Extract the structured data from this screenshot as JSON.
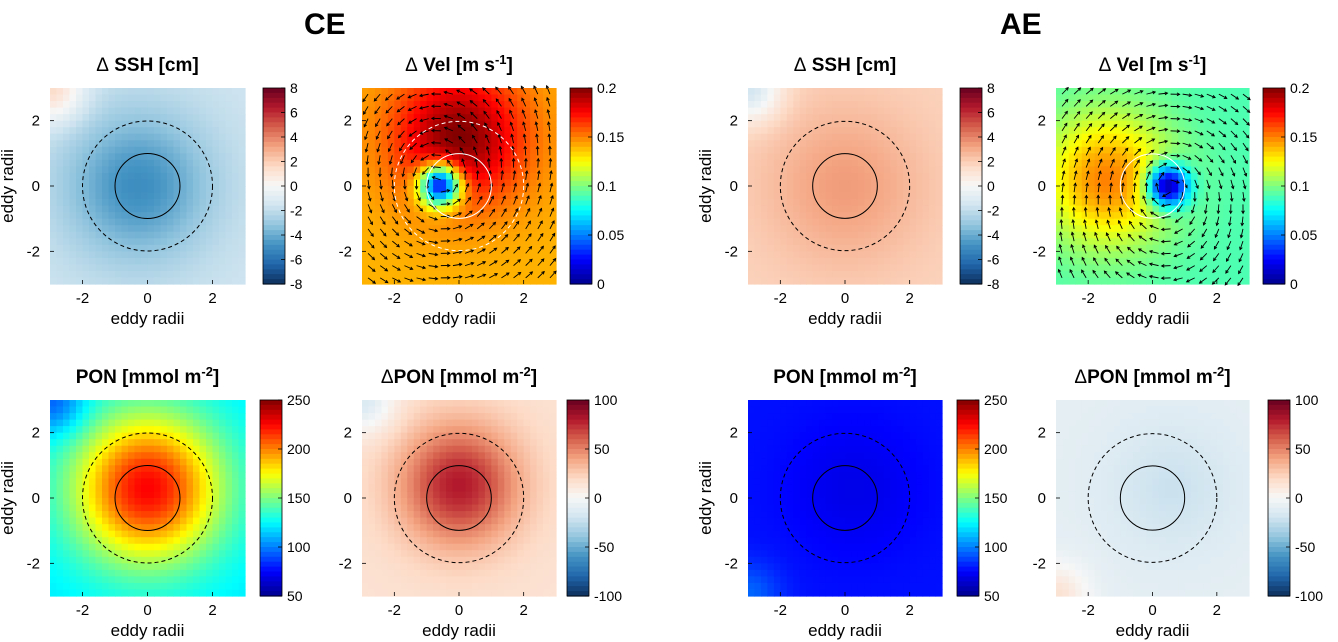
{
  "groups": [
    {
      "id": "ce",
      "title": "CE"
    },
    {
      "id": "ae",
      "title": "AE"
    }
  ],
  "colormaps": {
    "diverging": [
      "#0c2f5b",
      "#2166ac",
      "#4393c3",
      "#92c5de",
      "#d1e5f0",
      "#f7f7f7",
      "#fddbc7",
      "#f4a582",
      "#d6604d",
      "#b2182b",
      "#67001f"
    ],
    "jet": [
      "#00008f",
      "#0000ff",
      "#0080ff",
      "#00ffff",
      "#80ff80",
      "#ffff00",
      "#ff8000",
      "#ff0000",
      "#800000"
    ]
  },
  "chart_data": [
    {
      "id": "ce-ssh",
      "group": "CE",
      "type": "heatmap",
      "title_prefix": "Δ",
      "title_main": " SSH [cm]",
      "xlabel": "eddy radii",
      "ylabel": "eddy radii",
      "xlim": [
        -3,
        3
      ],
      "ylim": [
        -3,
        3
      ],
      "xticks": [
        -2,
        0,
        2
      ],
      "yticks": [
        -2,
        0,
        2
      ],
      "show_xlabel": true,
      "show_ylabel": true,
      "colormap": "diverging",
      "clim": [
        -8,
        8
      ],
      "colorbar_ticks": [
        "8",
        "6",
        "4",
        "2",
        "0",
        "-2",
        "-4",
        "-6",
        "-8"
      ],
      "colorbar_values": [
        8,
        6,
        4,
        2,
        0,
        -2,
        -4,
        -6,
        -8
      ],
      "field": {
        "background": -1.6,
        "peak": -5.0,
        "center": [
          -0.3,
          0.0
        ],
        "sigma": 1.6,
        "corner_value": 1.5,
        "corner": [
          -3,
          3
        ]
      },
      "circles": [
        {
          "r": 1,
          "style": "solid",
          "color": "black"
        },
        {
          "r": 2,
          "style": "dashed",
          "color": "black"
        }
      ],
      "arrows": false
    },
    {
      "id": "ce-vel",
      "group": "CE",
      "type": "heatmap",
      "title_prefix": "Δ",
      "title_main": " Vel [m s",
      "title_sup": "-1",
      "title_end": "]",
      "xlabel": "eddy radii",
      "ylabel": "",
      "xlim": [
        -3,
        3
      ],
      "ylim": [
        -3,
        3
      ],
      "xticks": [
        -2,
        0,
        2
      ],
      "yticks": [
        -2,
        0,
        2
      ],
      "show_xlabel": true,
      "show_ylabel": false,
      "colormap": "jet",
      "clim": [
        0,
        0.2
      ],
      "colorbar_ticks": [
        "0.2",
        "0.15",
        "0.1",
        "0.05",
        "0"
      ],
      "colorbar_values": [
        0.2,
        0.15,
        0.1,
        0.05,
        0
      ],
      "field": {
        "background": 0.14,
        "ring_peak": 0.2,
        "ring_center": [
          0.0,
          1.5
        ],
        "center_min": 0.03,
        "center": [
          -0.6,
          0.0
        ]
      },
      "circles": [
        {
          "r": 1,
          "style": "solid",
          "color": "white"
        },
        {
          "r": 2,
          "style": "dashed",
          "color": "white"
        }
      ],
      "arrows": true,
      "rotation": "counterclockwise"
    },
    {
      "id": "ae-ssh",
      "group": "AE",
      "type": "heatmap",
      "title_prefix": "Δ",
      "title_main": " SSH [cm]",
      "xlabel": "eddy radii",
      "ylabel": "eddy radii",
      "xlim": [
        -3,
        3
      ],
      "ylim": [
        -3,
        3
      ],
      "xticks": [
        -2,
        0,
        2
      ],
      "yticks": [
        -2,
        0,
        2
      ],
      "show_xlabel": true,
      "show_ylabel": true,
      "colormap": "diverging",
      "clim": [
        -8,
        8
      ],
      "colorbar_ticks": [
        "8",
        "6",
        "4",
        "2",
        "0",
        "-2",
        "-4",
        "-6",
        "-8"
      ],
      "colorbar_values": [
        8,
        6,
        4,
        2,
        0,
        -2,
        -4,
        -6,
        -8
      ],
      "field": {
        "background": 1.8,
        "peak": 3.4,
        "center": [
          0.0,
          0.0
        ],
        "sigma": 1.7,
        "corner_value": -1.5,
        "corner": [
          -3,
          3
        ]
      },
      "circles": [
        {
          "r": 1,
          "style": "solid",
          "color": "black"
        },
        {
          "r": 2,
          "style": "dashed",
          "color": "black"
        }
      ],
      "arrows": false
    },
    {
      "id": "ae-vel",
      "group": "AE",
      "type": "heatmap",
      "title_prefix": "Δ",
      "title_main": " Vel [m s",
      "title_sup": "-1",
      "title_end": "]",
      "xlabel": "eddy radii",
      "ylabel": "",
      "xlim": [
        -3,
        3
      ],
      "ylim": [
        -3,
        3
      ],
      "xticks": [
        -2,
        0,
        2
      ],
      "yticks": [
        -2,
        0,
        2
      ],
      "show_xlabel": true,
      "show_ylabel": false,
      "colormap": "jet",
      "clim": [
        0,
        0.2
      ],
      "colorbar_ticks": [
        "0.2",
        "0.15",
        "0.1",
        "0.05",
        "0"
      ],
      "colorbar_values": [
        0.2,
        0.15,
        0.1,
        0.05,
        0
      ],
      "field": {
        "background": 0.09,
        "ring_peak": 0.15,
        "ring_center": [
          -1.4,
          0.2
        ],
        "center_min": 0.01,
        "center": [
          0.5,
          0.0
        ]
      },
      "circles": [
        {
          "r": 1,
          "style": "solid",
          "color": "white"
        }
      ],
      "arrows": true,
      "rotation": "clockwise"
    },
    {
      "id": "ce-pon",
      "group": "CE",
      "type": "heatmap",
      "title_prefix": "",
      "title_main": "PON [mmol m",
      "title_sup": "-2",
      "title_end": "]",
      "xlabel": "eddy radii",
      "ylabel": "eddy radii",
      "xlim": [
        -3,
        3
      ],
      "ylim": [
        -3,
        3
      ],
      "xticks": [
        -2,
        0,
        2
      ],
      "yticks": [
        -2,
        0,
        2
      ],
      "show_xlabel": true,
      "show_ylabel": true,
      "colormap": "jet",
      "clim": [
        50,
        250
      ],
      "colorbar_ticks": [
        "250",
        "200",
        "150",
        "100",
        "50"
      ],
      "colorbar_values": [
        250,
        200,
        150,
        100,
        50
      ],
      "field": {
        "background": 120,
        "peak": 225,
        "center": [
          0.0,
          0.3
        ],
        "sigma": 1.6,
        "corner_value": 95,
        "corner": [
          -3,
          3
        ]
      },
      "circles": [
        {
          "r": 1,
          "style": "solid",
          "color": "black"
        },
        {
          "r": 2,
          "style": "dashed",
          "color": "black"
        }
      ],
      "arrows": false
    },
    {
      "id": "ce-dpon",
      "group": "CE",
      "type": "heatmap",
      "title_prefix": "Δ",
      "title_main": "PON [mmol m",
      "title_sup": "-2",
      "title_end": "]",
      "xlabel": "eddy radii",
      "ylabel": "",
      "xlim": [
        -3,
        3
      ],
      "ylim": [
        -3,
        3
      ],
      "xticks": [
        -2,
        0,
        2
      ],
      "yticks": [
        -2,
        0,
        2
      ],
      "show_xlabel": true,
      "show_ylabel": false,
      "colormap": "diverging",
      "clim": [
        -100,
        100
      ],
      "colorbar_ticks": [
        "100",
        "50",
        "0",
        "-50",
        "-100"
      ],
      "colorbar_values": [
        100,
        50,
        0,
        -50,
        -100
      ],
      "field": {
        "background": 15,
        "peak": 80,
        "center": [
          0.0,
          0.4
        ],
        "sigma": 1.3,
        "corner_value": -15,
        "corner": [
          -3,
          3
        ]
      },
      "circles": [
        {
          "r": 1,
          "style": "solid",
          "color": "black"
        },
        {
          "r": 2,
          "style": "dashed",
          "color": "black"
        }
      ],
      "arrows": false
    },
    {
      "id": "ae-pon",
      "group": "AE",
      "type": "heatmap",
      "title_prefix": "",
      "title_main": "PON [mmol m",
      "title_sup": "-2",
      "title_end": "]",
      "xlabel": "eddy radii",
      "ylabel": "eddy radii",
      "xlim": [
        -3,
        3
      ],
      "ylim": [
        -3,
        3
      ],
      "xticks": [
        -2,
        0,
        2
      ],
      "yticks": [
        -2,
        0,
        2
      ],
      "show_xlabel": true,
      "show_ylabel": true,
      "colormap": "jet",
      "clim": [
        50,
        250
      ],
      "colorbar_ticks": [
        "250",
        "200",
        "150",
        "100",
        "50"
      ],
      "colorbar_values": [
        250,
        200,
        150,
        100,
        50
      ],
      "field": {
        "background": 78,
        "peak": 70,
        "center": [
          0.3,
          0.3
        ],
        "sigma": 1.4,
        "corner_value": 95,
        "corner": [
          -3,
          -3
        ]
      },
      "circles": [
        {
          "r": 1,
          "style": "solid",
          "color": "black"
        },
        {
          "r": 2,
          "style": "dashed",
          "color": "black"
        }
      ],
      "arrows": false
    },
    {
      "id": "ae-dpon",
      "group": "AE",
      "type": "heatmap",
      "title_prefix": "Δ",
      "title_main": "PON [mmol m",
      "title_sup": "-2",
      "title_end": "]",
      "xlabel": "eddy radii",
      "ylabel": "",
      "xlim": [
        -3,
        3
      ],
      "ylim": [
        -3,
        3
      ],
      "xticks": [
        -2,
        0,
        2
      ],
      "yticks": [
        -2,
        0,
        2
      ],
      "show_xlabel": true,
      "show_ylabel": false,
      "colormap": "diverging",
      "clim": [
        -100,
        100
      ],
      "colorbar_ticks": [
        "100",
        "50",
        "0",
        "-50",
        "-100"
      ],
      "colorbar_values": [
        100,
        50,
        0,
        -50,
        -100
      ],
      "field": {
        "background": -10,
        "peak": -22,
        "center": [
          0.6,
          0.3
        ],
        "sigma": 1.3,
        "corner_value": 15,
        "corner": [
          -3,
          -3
        ]
      },
      "circles": [
        {
          "r": 1,
          "style": "solid",
          "color": "black"
        },
        {
          "r": 2,
          "style": "dashed",
          "color": "black"
        }
      ],
      "arrows": false
    }
  ]
}
